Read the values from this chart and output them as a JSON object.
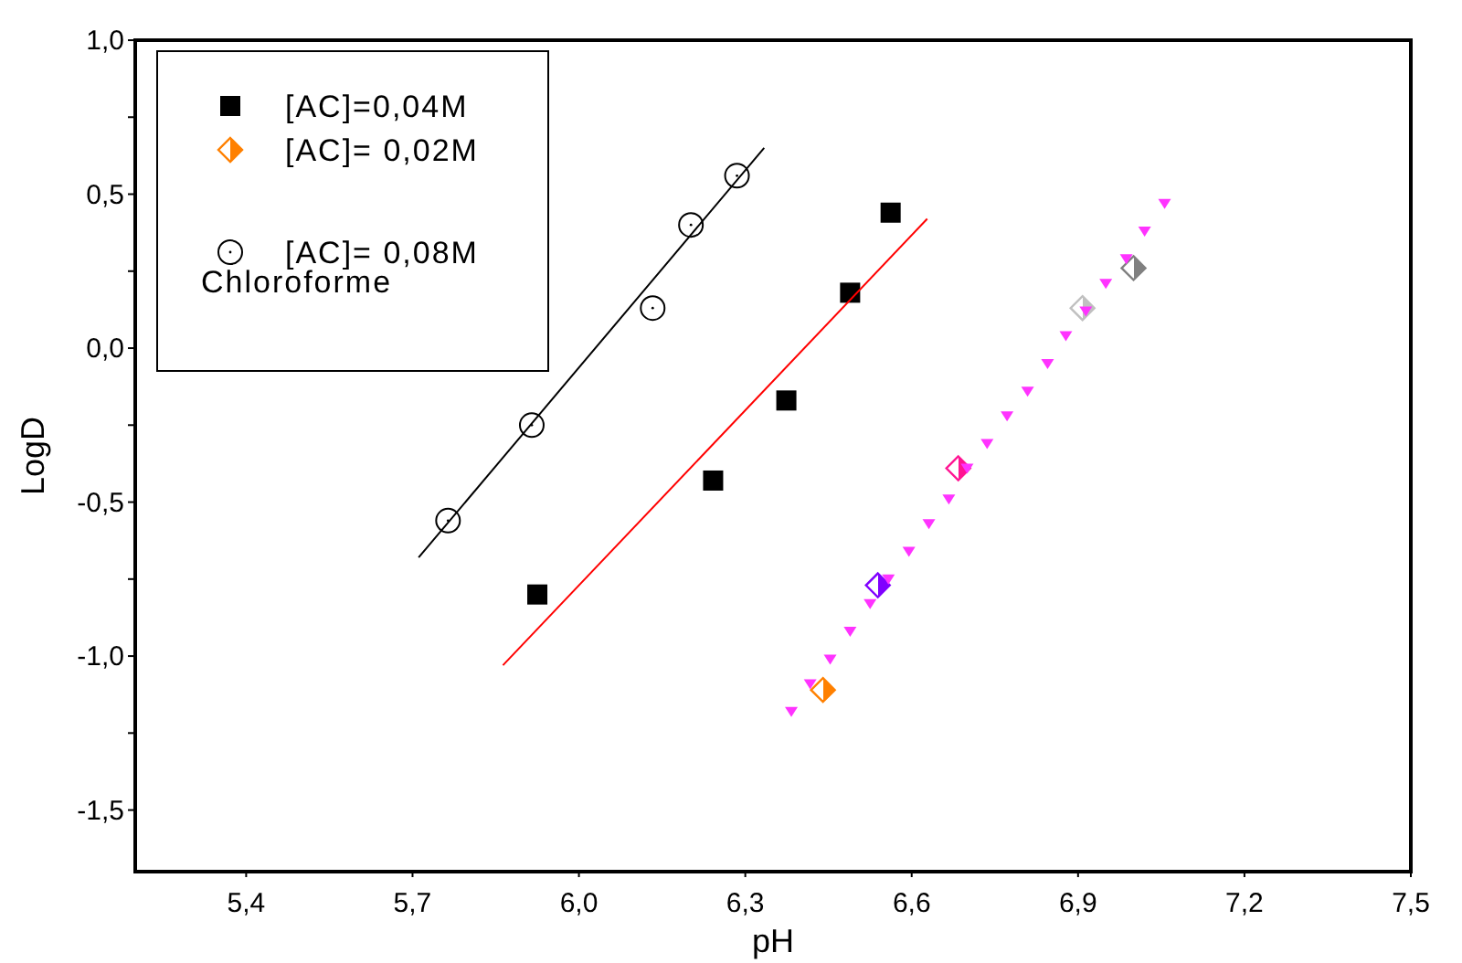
{
  "chart_data": {
    "type": "scatter",
    "xlabel": "pH",
    "ylabel": "LogD",
    "xlim": [
      5.2,
      7.5
    ],
    "xticks": [
      {
        "value": 5.4,
        "label": "5,4"
      },
      {
        "value": 5.7,
        "label": "5,7"
      },
      {
        "value": 6.0,
        "label": "6,0"
      },
      {
        "value": 6.3,
        "label": "6,3"
      },
      {
        "value": 6.6,
        "label": "6,6"
      },
      {
        "value": 6.9,
        "label": "6,9"
      },
      {
        "value": 7.2,
        "label": "7,2"
      },
      {
        "value": 7.5,
        "label": "7,5"
      }
    ],
    "ylim": [
      -1.7,
      1.0
    ],
    "yticks": [
      {
        "value": -1.5,
        "label": "-1,5"
      },
      {
        "value": -1.25,
        "label": null
      },
      {
        "value": -1.0,
        "label": "-1,0"
      },
      {
        "value": -0.75,
        "label": null
      },
      {
        "value": -0.5,
        "label": "-0,5"
      },
      {
        "value": -0.25,
        "label": null
      },
      {
        "value": 0,
        "label": "0,0"
      },
      {
        "value": 0.25,
        "label": null
      },
      {
        "value": 0.5,
        "label": "0,5"
      },
      {
        "value": 0.75,
        "label": null
      },
      {
        "value": 1.0,
        "label": "1,0"
      }
    ],
    "grid": false,
    "legend": "top left",
    "annotations": [
      "Chloroforme"
    ],
    "series": [
      {
        "name": "[AC]=0,04M",
        "type": "scatter",
        "marker": "square",
        "color": "#000000",
        "x": [
          5.925,
          6.242,
          6.374,
          6.489,
          6.562
        ],
        "values": [
          -0.8,
          -0.43,
          -0.17,
          0.18,
          0.44
        ]
      },
      {
        "name": "[AC]= 0,02M",
        "type": "scatter",
        "marker": "diamond",
        "color": "#ff8000",
        "colors": [
          "#ff8000",
          "#8000ff",
          "#ff1493",
          "#c0c0c0",
          "#808080"
        ],
        "x": [
          6.44,
          6.539,
          6.684,
          6.908,
          7.0
        ],
        "values": [
          -1.11,
          -0.77,
          -0.39,
          0.13,
          0.26
        ]
      },
      {
        "name": "[AC]= 0,08M",
        "type": "scatter",
        "marker": "circle",
        "color": "#000000",
        "x": [
          5.764,
          5.915,
          6.133,
          6.202,
          6.285
        ],
        "values": [
          -0.56,
          -0.25,
          0.13,
          0.4,
          0.56
        ]
      },
      {
        "type": "line",
        "marker": "none",
        "color": "#000000",
        "x": [
          5.711,
          6.334
        ],
        "values": [
          -0.68,
          0.65
        ]
      },
      {
        "type": "line",
        "marker": "none",
        "color": "#ff0000",
        "x": [
          5.863,
          6.628
        ],
        "values": [
          -1.03,
          0.42
        ]
      },
      {
        "type": "scatter",
        "marker": "triangle",
        "color": "#ff33ff",
        "x": [
          6.383,
          6.417,
          6.453,
          6.489,
          6.525,
          6.558,
          6.595,
          6.631,
          6.667,
          6.7,
          6.736,
          6.772,
          6.809,
          6.845,
          6.878,
          6.914,
          6.95,
          6.987,
          7.02,
          7.056
        ],
        "values": [
          -1.18,
          -1.09,
          -1.01,
          -0.92,
          -0.83,
          -0.75,
          -0.66,
          -0.57,
          -0.49,
          -0.39,
          -0.31,
          -0.22,
          -0.14,
          -0.05,
          0.04,
          0.12,
          0.21,
          0.29,
          0.38,
          0.47
        ]
      }
    ]
  }
}
